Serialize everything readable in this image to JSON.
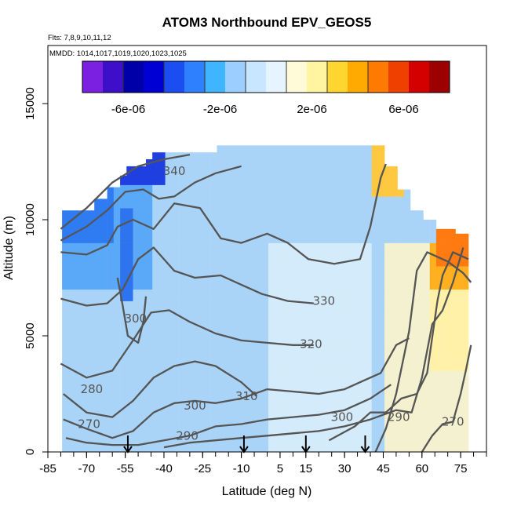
{
  "chart_data": {
    "type": "heatmap",
    "title": "ATOM3 Northbound EPV_GEOS5",
    "note_flights": "Flts: 7,8,9,10,11,12",
    "note_dates": "MMDD: 1014,1017,1019,1020,1023,1025",
    "xlabel": "Latitude (deg N)",
    "ylabel": "Altitude (m)",
    "xlim": [
      -85,
      85
    ],
    "ylim": [
      0,
      17500
    ],
    "x_ticks": [
      -85,
      -70,
      -55,
      -40,
      -25,
      -10,
      5,
      15,
      30,
      45,
      60,
      75
    ],
    "x_tick_labels": [
      "-85",
      "-70",
      "-55",
      "-40",
      "-25",
      "-10",
      "5",
      "15",
      "30",
      "45",
      "60",
      "75"
    ],
    "y_ticks": [
      0,
      5000,
      10000,
      15000
    ],
    "y_tick_labels": [
      "0",
      "5000",
      "10000",
      "15000"
    ],
    "colorbar": {
      "range": [
        -8e-06,
        8e-06
      ],
      "tick_values": [
        -6e-06,
        -2e-06,
        2e-06,
        6e-06
      ],
      "tick_labels": [
        "-6e-06",
        "-2e-06",
        "2e-06",
        "6e-06"
      ],
      "colors": [
        "#7b1fe0",
        "#3d0fc8",
        "#0000a8",
        "#0000d4",
        "#1a4ef0",
        "#2f80ff",
        "#3fb4ff",
        "#9ccfff",
        "#c8e6ff",
        "#e6f4ff",
        "#fffbd8",
        "#fff4a0",
        "#ffd530",
        "#ffaa00",
        "#ff7a00",
        "#f04000",
        "#d40000",
        "#9c0000"
      ]
    },
    "contour_labels": [
      {
        "text": "340",
        "lat": -36,
        "alt": 12100
      },
      {
        "text": "330",
        "lat": 22,
        "alt": 6500
      },
      {
        "text": "320",
        "lat": 17,
        "alt": 4650
      },
      {
        "text": "310",
        "lat": -8,
        "alt": 2400
      },
      {
        "text": "300",
        "lat": -51,
        "alt": 5750
      },
      {
        "text": "300",
        "lat": -28,
        "alt": 2000
      },
      {
        "text": "300",
        "lat": 29,
        "alt": 1500
      },
      {
        "text": "290",
        "lat": -31,
        "alt": 700
      },
      {
        "text": "290",
        "lat": 51,
        "alt": 1500
      },
      {
        "text": "280",
        "lat": -68,
        "alt": 2700
      },
      {
        "text": "270",
        "lat": -69,
        "alt": 1200
      },
      {
        "text": "270",
        "lat": 72,
        "alt": 1300
      }
    ],
    "arrows_lat": [
      -54,
      -9,
      15,
      38
    ]
  }
}
